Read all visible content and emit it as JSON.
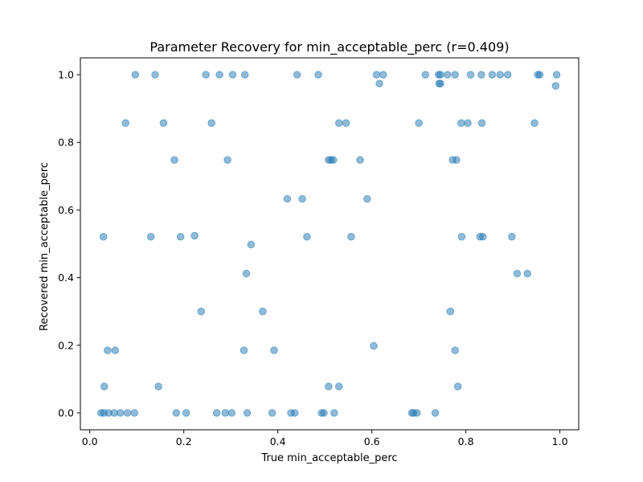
{
  "chart_data": {
    "type": "scatter",
    "title": "Parameter Recovery for min_acceptable_perc (r=0.409)",
    "xlabel": "True min_acceptable_perc",
    "ylabel": "Recovered min_acceptable_perc",
    "xlim": [
      -0.02,
      1.04
    ],
    "ylim": [
      -0.05,
      1.05
    ],
    "xticks": [
      0.0,
      0.2,
      0.4,
      0.6,
      0.8,
      1.0
    ],
    "xtick_labels": [
      "0.0",
      "0.2",
      "0.4",
      "0.6",
      "0.8",
      "1.0"
    ],
    "yticks": [
      0.0,
      0.2,
      0.4,
      0.6,
      0.8,
      1.0
    ],
    "ytick_labels": [
      "0.0",
      "0.2",
      "0.4",
      "0.6",
      "0.8",
      "1.0"
    ],
    "grid": false,
    "marker_color": "#1f77b4",
    "marker_alpha": 0.5,
    "x": [
      0.097,
      0.139,
      0.247,
      0.276,
      0.304,
      0.33,
      0.441,
      0.486,
      0.61,
      0.624,
      0.714,
      0.742,
      0.746,
      0.761,
      0.777,
      0.81,
      0.833,
      0.856,
      0.873,
      0.889,
      0.953,
      0.957,
      0.993,
      0.616,
      0.743,
      0.746,
      0.991,
      0.076,
      0.157,
      0.259,
      0.53,
      0.545,
      0.7,
      0.79,
      0.804,
      0.834,
      0.946,
      0.18,
      0.293,
      0.508,
      0.513,
      0.518,
      0.575,
      0.772,
      0.78,
      0.42,
      0.452,
      0.59,
      0.029,
      0.13,
      0.193,
      0.223,
      0.462,
      0.556,
      0.791,
      0.83,
      0.836,
      0.898,
      0.343,
      0.333,
      0.909,
      0.931,
      0.237,
      0.368,
      0.767,
      0.038,
      0.054,
      0.328,
      0.392,
      0.604,
      0.777,
      0.031,
      0.146,
      0.508,
      0.53,
      0.783,
      0.024,
      0.03,
      0.04,
      0.052,
      0.065,
      0.08,
      0.095,
      0.184,
      0.205,
      0.27,
      0.288,
      0.302,
      0.335,
      0.388,
      0.428,
      0.436,
      0.493,
      0.498,
      0.52,
      0.685,
      0.689,
      0.696,
      0.735
    ],
    "y": [
      1.0,
      1.0,
      1.0,
      1.0,
      1.0,
      1.0,
      1.0,
      1.0,
      1.0,
      1.0,
      1.0,
      1.0,
      1.0,
      1.0,
      1.0,
      1.0,
      1.0,
      1.0,
      1.0,
      1.0,
      1.0,
      1.0,
      1.0,
      0.974,
      0.974,
      0.974,
      0.967,
      0.857,
      0.857,
      0.857,
      0.857,
      0.857,
      0.857,
      0.857,
      0.857,
      0.857,
      0.857,
      0.748,
      0.748,
      0.748,
      0.748,
      0.748,
      0.748,
      0.748,
      0.748,
      0.633,
      0.633,
      0.633,
      0.521,
      0.521,
      0.521,
      0.524,
      0.521,
      0.521,
      0.521,
      0.521,
      0.521,
      0.521,
      0.498,
      0.412,
      0.412,
      0.412,
      0.3,
      0.3,
      0.3,
      0.185,
      0.185,
      0.185,
      0.185,
      0.198,
      0.185,
      0.078,
      0.078,
      0.078,
      0.078,
      0.078,
      0.0,
      0.0,
      0.0,
      0.0,
      0.0,
      0.0,
      0.0,
      0.0,
      0.0,
      0.0,
      0.0,
      0.0,
      0.0,
      0.0,
      0.0,
      0.0,
      0.0,
      0.0,
      0.0,
      0.0,
      0.0,
      0.0,
      0.0
    ]
  }
}
